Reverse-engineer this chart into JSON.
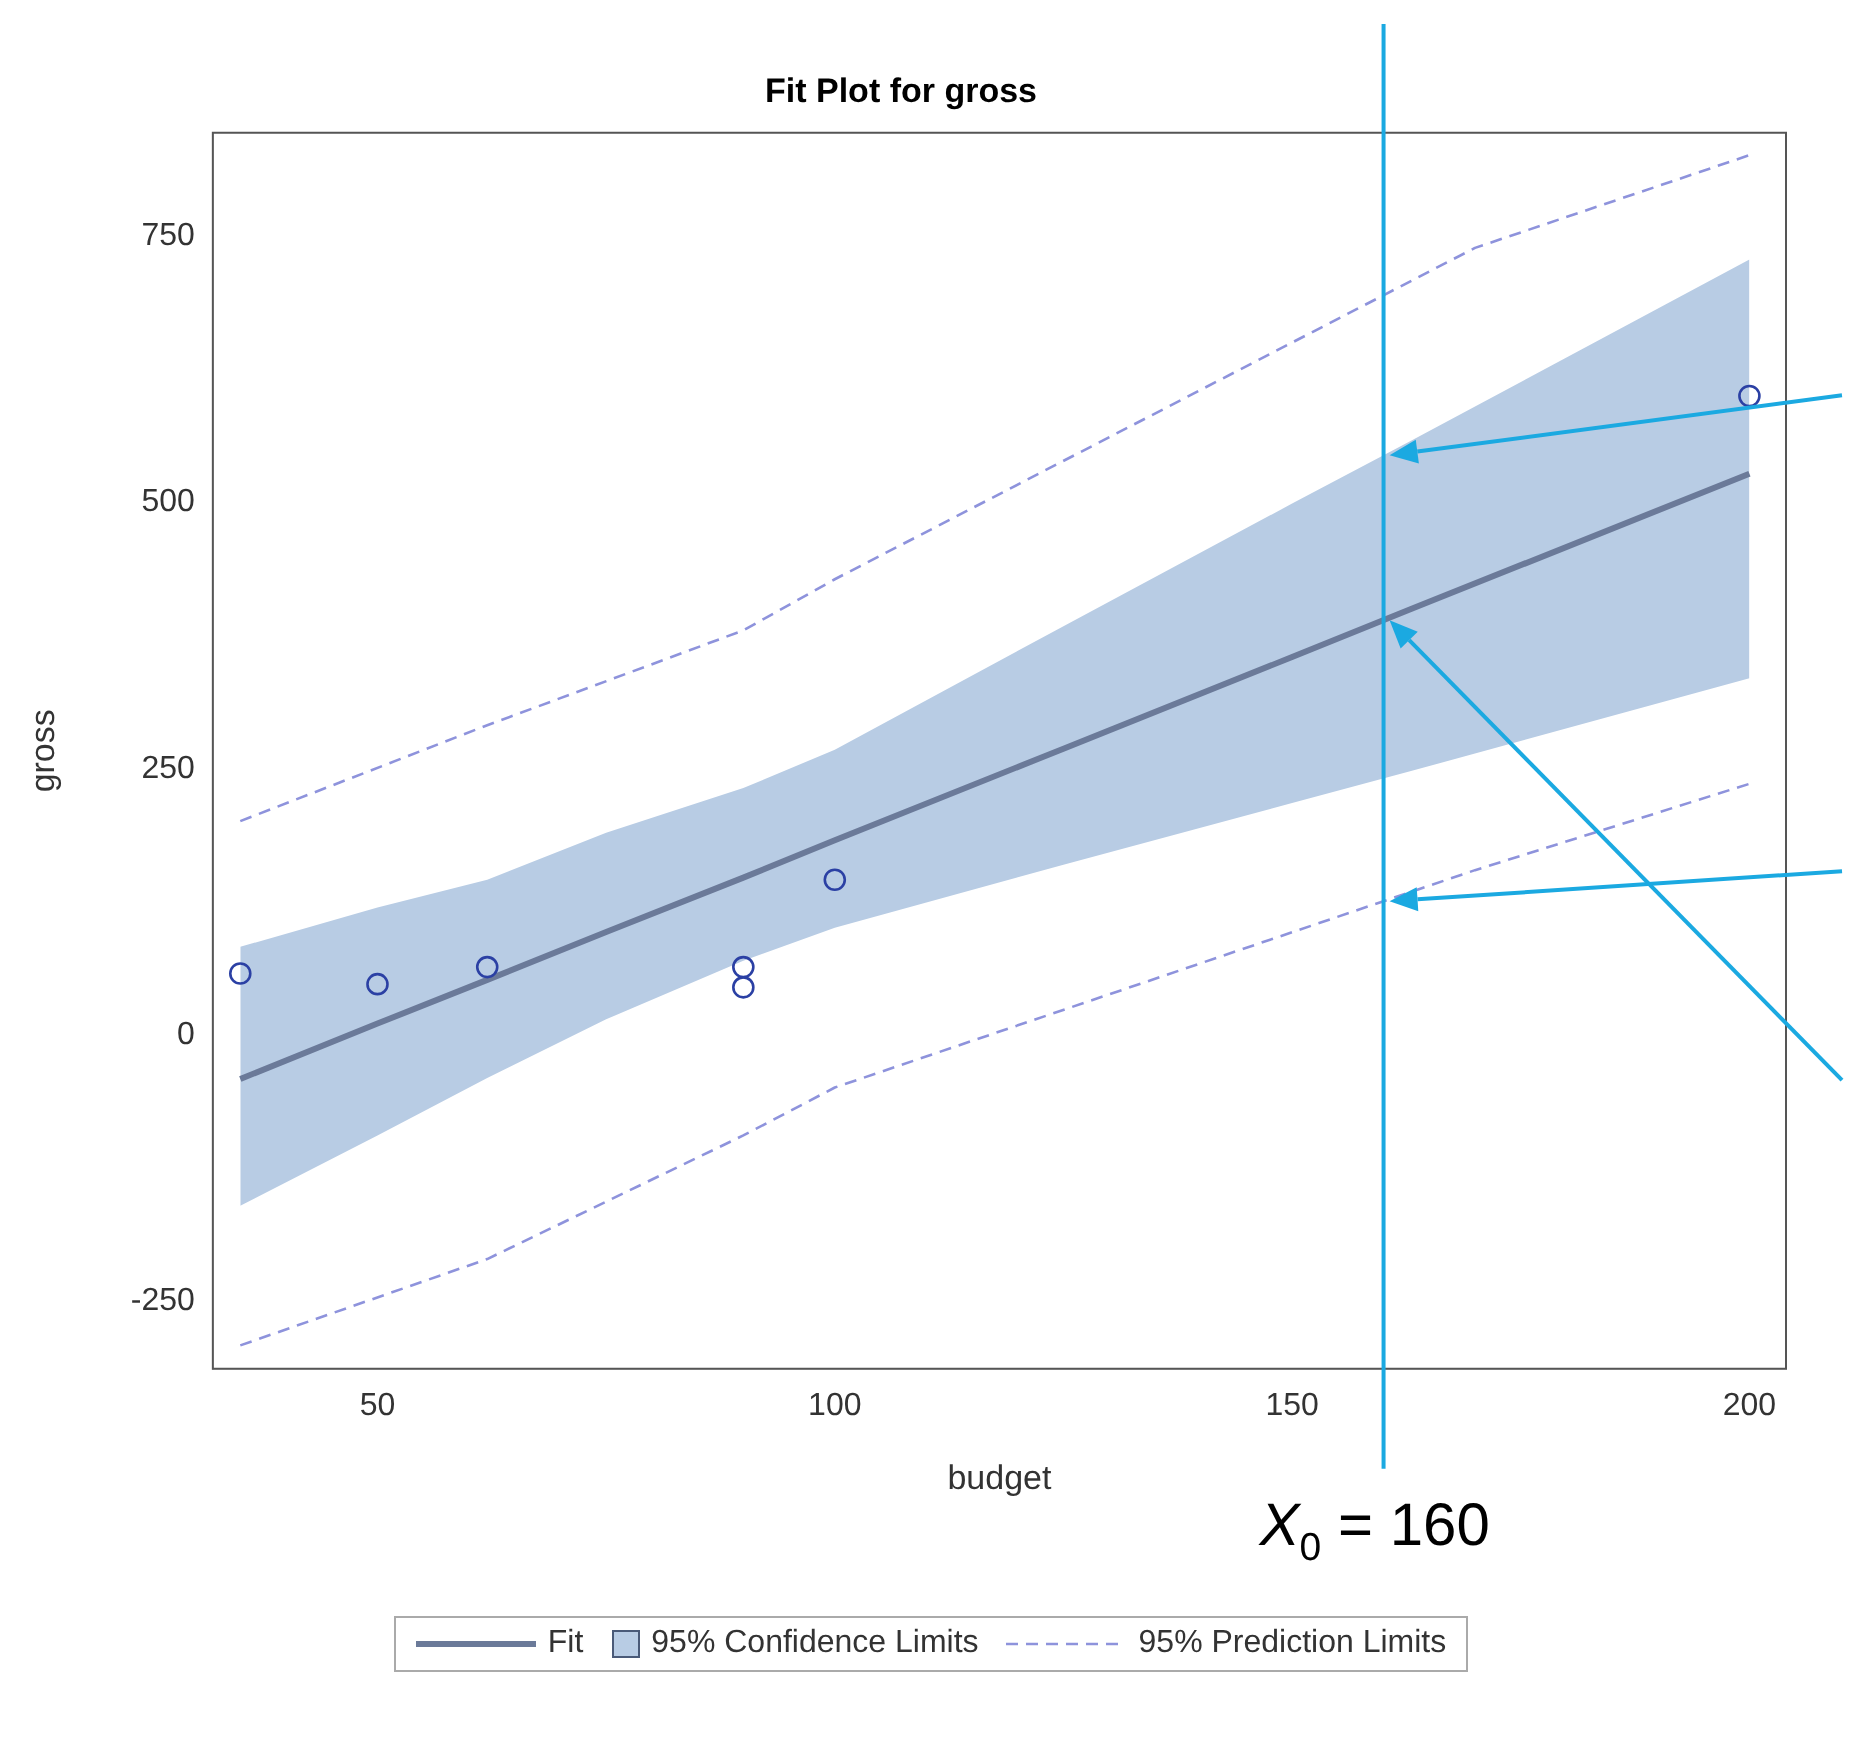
{
  "chart_data": {
    "type": "line",
    "title": "Fit Plot for gross",
    "xlabel": "budget",
    "ylabel": "gross",
    "xlim": [
      32,
      204
    ],
    "ylim": [
      -313,
      847
    ],
    "xticks": [
      50,
      100,
      150,
      200
    ],
    "yticks": [
      -250,
      0,
      250,
      500,
      750
    ],
    "grid": false,
    "legend": "bottom",
    "series": [
      {
        "name": "Fit",
        "color": "#6b7a99",
        "x": [
          35,
          50,
          62,
          75,
          90,
          100,
          125,
          150,
          163,
          200
        ],
        "values": [
          -41,
          11,
          52,
          97,
          148,
          183,
          269,
          355,
          400,
          527
        ],
        "lower": [
          -160,
          -94,
          -40,
          15,
          70,
          101,
          160,
          218,
          248,
          335
        ],
        "upper": [
          83,
          120,
          146,
          190,
          232,
          268,
          384,
          499,
          558,
          728
        ],
        "marker": "none",
        "line_style": "solid"
      },
      {
        "name": "95% Prediction Limits",
        "type": "line",
        "color": "#8e93dc",
        "x": [
          35,
          62,
          90,
          100,
          170,
          200
        ],
        "values": [
          201,
          291,
          380,
          428,
          739,
          826
        ],
        "marker": "none",
        "line_style": "dashed"
      },
      {
        "type": "line",
        "color": "#8e93dc",
        "x": [
          35,
          62,
          90,
          100,
          170,
          200
        ],
        "values": [
          -291,
          -210,
          -94,
          -49,
          155,
          236
        ],
        "marker": "none",
        "line_style": "dashed"
      },
      {
        "type": "scatter",
        "color": "#2b40a4",
        "marker": "circle",
        "x": [
          35,
          50,
          62,
          90,
          90,
          100,
          200
        ],
        "values": [
          58,
          48,
          64,
          64,
          45,
          146,
          600
        ]
      }
    ],
    "annotations": [
      "95% Confidence Limits"
    ],
    "ref_lines": [
      {
        "axis": "x",
        "value": 160,
        "label": "X$_{0}$ = 160",
        "color": "#1ba9e1"
      }
    ]
  }
}
